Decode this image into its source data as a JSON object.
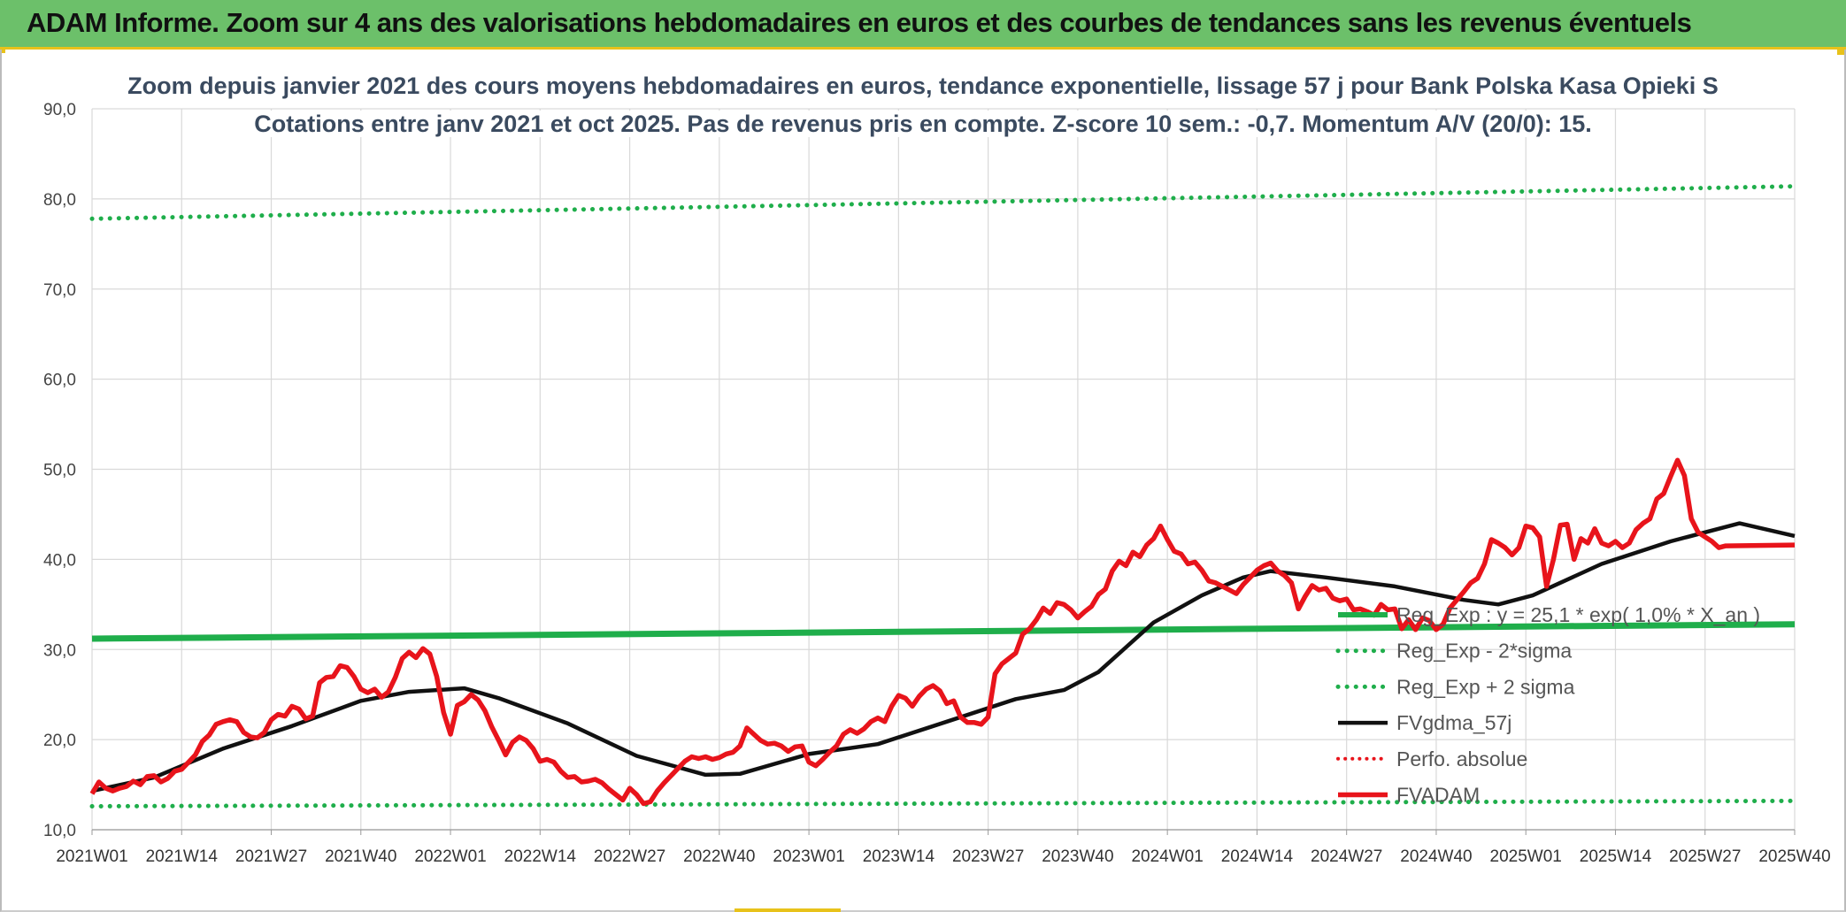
{
  "banner": {
    "title": "ADAM Informe. Zoom sur 4 ans des valorisations hebdomadaires en euros et des courbes de tendances sans les revenus éventuels"
  },
  "colors": {
    "banner_bg": "#6cc06a",
    "accent": "#e8c21a",
    "trend_green": "#1fae4b",
    "smooth_black": "#111111",
    "price_red": "#e8141b"
  },
  "chart_data": {
    "type": "line",
    "title": "Zoom depuis janvier 2021 des cours moyens hebdomadaires en euros, tendance exponentielle, lissage 57 j pour Bank Polska Kasa Opieki S",
    "subtitle": "Cotations entre janv 2021 et oct 2025. Pas de revenus pris en compte. Z-score 10 sem.: -0,7. Momentum A/V (20/0): 15.",
    "xlabel": "",
    "ylabel": "",
    "ylim": [
      10,
      90
    ],
    "yticks": [
      "10,0",
      "20,0",
      "30,0",
      "40,0",
      "50,0",
      "60,0",
      "70,0",
      "80,0",
      "90,0"
    ],
    "x_start_week": 1,
    "x_end_week": 248,
    "xticks": [
      {
        "week": 1,
        "label": "2021W01"
      },
      {
        "week": 14,
        "label": "2021W14"
      },
      {
        "week": 27,
        "label": "2021W27"
      },
      {
        "week": 40,
        "label": "2021W40"
      },
      {
        "week": 53,
        "label": "2022W01"
      },
      {
        "week": 66,
        "label": "2022W14"
      },
      {
        "week": 79,
        "label": "2022W27"
      },
      {
        "week": 92,
        "label": "2022W40"
      },
      {
        "week": 105,
        "label": "2023W01"
      },
      {
        "week": 118,
        "label": "2023W14"
      },
      {
        "week": 131,
        "label": "2023W27"
      },
      {
        "week": 144,
        "label": "2023W40"
      },
      {
        "week": 157,
        "label": "2024W01"
      },
      {
        "week": 170,
        "label": "2024W14"
      },
      {
        "week": 183,
        "label": "2024W27"
      },
      {
        "week": 196,
        "label": "2024W40"
      },
      {
        "week": 209,
        "label": "2025W01"
      },
      {
        "week": 222,
        "label": "2025W14"
      },
      {
        "week": 235,
        "label": "2025W27"
      },
      {
        "week": 248,
        "label": "2025W40"
      }
    ],
    "grid": true,
    "legend_position": "right",
    "series": [
      {
        "name": "Reg_Exp : y = 25,1 * exp( 1,0% * X_an )",
        "style": "solid-green",
        "points": [
          [
            1,
            31.2
          ],
          [
            248,
            32.8
          ]
        ]
      },
      {
        "name": "Reg_Exp - 2*sigma",
        "style": "dotted-green",
        "points": [
          [
            1,
            12.6
          ],
          [
            248,
            13.2
          ]
        ]
      },
      {
        "name": "Reg_Exp + 2 sigma",
        "style": "dotted-green",
        "points": [
          [
            1,
            77.8
          ],
          [
            248,
            81.4
          ]
        ]
      },
      {
        "name": "FVgdma_57j",
        "style": "solid-black",
        "points": [
          [
            1,
            14.3
          ],
          [
            10,
            15.8
          ],
          [
            20,
            19.0
          ],
          [
            30,
            21.5
          ],
          [
            40,
            24.3
          ],
          [
            47,
            25.3
          ],
          [
            55,
            25.7
          ],
          [
            60,
            24.6
          ],
          [
            70,
            21.8
          ],
          [
            80,
            18.2
          ],
          [
            90,
            16.1
          ],
          [
            95,
            16.2
          ],
          [
            105,
            18.4
          ],
          [
            115,
            19.5
          ],
          [
            125,
            22.0
          ],
          [
            135,
            24.5
          ],
          [
            142,
            25.5
          ],
          [
            147,
            27.5
          ],
          [
            155,
            33.0
          ],
          [
            162,
            36.0
          ],
          [
            168,
            38.0
          ],
          [
            172,
            38.7
          ],
          [
            180,
            38.0
          ],
          [
            190,
            37.0
          ],
          [
            200,
            35.5
          ],
          [
            205,
            35.0
          ],
          [
            210,
            36.0
          ],
          [
            220,
            39.5
          ],
          [
            230,
            42.0
          ],
          [
            240,
            44.0
          ],
          [
            248,
            42.6
          ]
        ]
      },
      {
        "name": "Perfo. absolue",
        "style": "dotted-red",
        "points": []
      },
      {
        "name": "FVADAM",
        "style": "solid-red",
        "points": [
          [
            1,
            14.0
          ],
          [
            2,
            15.3
          ],
          [
            3,
            14.6
          ],
          [
            4,
            14.3
          ],
          [
            5,
            14.6
          ],
          [
            6,
            14.8
          ],
          [
            7,
            15.4
          ],
          [
            8,
            15.0
          ],
          [
            9,
            15.9
          ],
          [
            10,
            16.0
          ],
          [
            11,
            15.3
          ],
          [
            12,
            15.7
          ],
          [
            13,
            16.5
          ],
          [
            14,
            16.7
          ],
          [
            15,
            17.5
          ],
          [
            16,
            18.3
          ],
          [
            17,
            19.8
          ],
          [
            18,
            20.5
          ],
          [
            19,
            21.7
          ],
          [
            20,
            22.0
          ],
          [
            21,
            22.2
          ],
          [
            22,
            22.0
          ],
          [
            23,
            20.8
          ],
          [
            24,
            20.3
          ],
          [
            25,
            20.2
          ],
          [
            26,
            20.8
          ],
          [
            27,
            22.2
          ],
          [
            28,
            22.8
          ],
          [
            29,
            22.6
          ],
          [
            30,
            23.7
          ],
          [
            31,
            23.4
          ],
          [
            32,
            22.3
          ],
          [
            33,
            22.6
          ],
          [
            34,
            26.3
          ],
          [
            35,
            26.9
          ],
          [
            36,
            27.0
          ],
          [
            37,
            28.2
          ],
          [
            38,
            28.0
          ],
          [
            39,
            27.0
          ],
          [
            40,
            25.6
          ],
          [
            41,
            25.2
          ],
          [
            42,
            25.6
          ],
          [
            43,
            24.7
          ],
          [
            44,
            25.3
          ],
          [
            45,
            26.9
          ],
          [
            46,
            29.0
          ],
          [
            47,
            29.7
          ],
          [
            48,
            29.1
          ],
          [
            49,
            30.1
          ],
          [
            50,
            29.5
          ],
          [
            51,
            27.0
          ],
          [
            52,
            23.0
          ],
          [
            53,
            20.6
          ],
          [
            54,
            23.8
          ],
          [
            55,
            24.2
          ],
          [
            56,
            25.0
          ],
          [
            57,
            24.4
          ],
          [
            58,
            23.2
          ],
          [
            59,
            21.4
          ],
          [
            60,
            19.9
          ],
          [
            61,
            18.3
          ],
          [
            62,
            19.7
          ],
          [
            63,
            20.3
          ],
          [
            64,
            19.9
          ],
          [
            65,
            19.0
          ],
          [
            66,
            17.6
          ],
          [
            67,
            17.8
          ],
          [
            68,
            17.5
          ],
          [
            69,
            16.5
          ],
          [
            70,
            15.8
          ],
          [
            71,
            15.9
          ],
          [
            72,
            15.3
          ],
          [
            73,
            15.4
          ],
          [
            74,
            15.6
          ],
          [
            75,
            15.2
          ],
          [
            76,
            14.5
          ],
          [
            77,
            13.9
          ],
          [
            78,
            13.3
          ],
          [
            79,
            14.6
          ],
          [
            80,
            13.9
          ],
          [
            81,
            12.9
          ],
          [
            82,
            13.1
          ],
          [
            83,
            14.3
          ],
          [
            84,
            15.2
          ],
          [
            85,
            16.0
          ],
          [
            86,
            16.8
          ],
          [
            87,
            17.6
          ],
          [
            88,
            18.1
          ],
          [
            89,
            17.9
          ],
          [
            90,
            18.1
          ],
          [
            91,
            17.8
          ],
          [
            92,
            18.0
          ],
          [
            93,
            18.4
          ],
          [
            94,
            18.6
          ],
          [
            95,
            19.3
          ],
          [
            96,
            21.3
          ],
          [
            97,
            20.6
          ],
          [
            98,
            19.9
          ],
          [
            99,
            19.5
          ],
          [
            100,
            19.6
          ],
          [
            101,
            19.3
          ],
          [
            102,
            18.7
          ],
          [
            103,
            19.2
          ],
          [
            104,
            19.3
          ],
          [
            105,
            17.5
          ],
          [
            106,
            17.1
          ],
          [
            107,
            17.8
          ],
          [
            108,
            18.6
          ],
          [
            109,
            19.3
          ],
          [
            110,
            20.6
          ],
          [
            111,
            21.1
          ],
          [
            112,
            20.7
          ],
          [
            113,
            21.2
          ],
          [
            114,
            22.0
          ],
          [
            115,
            22.4
          ],
          [
            116,
            22.0
          ],
          [
            117,
            23.7
          ],
          [
            118,
            24.9
          ],
          [
            119,
            24.6
          ],
          [
            120,
            23.7
          ],
          [
            121,
            24.8
          ],
          [
            122,
            25.6
          ],
          [
            123,
            26.0
          ],
          [
            124,
            25.4
          ],
          [
            125,
            24.0
          ],
          [
            126,
            24.3
          ],
          [
            127,
            22.5
          ],
          [
            128,
            21.9
          ],
          [
            129,
            21.9
          ],
          [
            130,
            21.7
          ],
          [
            131,
            22.5
          ],
          [
            132,
            27.3
          ],
          [
            133,
            28.4
          ],
          [
            134,
            29.0
          ],
          [
            135,
            29.6
          ],
          [
            136,
            31.7
          ],
          [
            137,
            32.3
          ],
          [
            138,
            33.3
          ],
          [
            139,
            34.6
          ],
          [
            140,
            34.0
          ],
          [
            141,
            35.2
          ],
          [
            142,
            35.0
          ],
          [
            143,
            34.4
          ],
          [
            144,
            33.5
          ],
          [
            145,
            34.2
          ],
          [
            146,
            34.8
          ],
          [
            147,
            36.1
          ],
          [
            148,
            36.7
          ],
          [
            149,
            38.7
          ],
          [
            150,
            39.8
          ],
          [
            151,
            39.3
          ],
          [
            152,
            40.8
          ],
          [
            153,
            40.3
          ],
          [
            154,
            41.6
          ],
          [
            155,
            42.3
          ],
          [
            156,
            43.7
          ],
          [
            157,
            42.2
          ],
          [
            158,
            40.9
          ],
          [
            159,
            40.6
          ],
          [
            160,
            39.5
          ],
          [
            161,
            39.7
          ],
          [
            162,
            38.8
          ],
          [
            163,
            37.6
          ],
          [
            164,
            37.4
          ],
          [
            165,
            37.0
          ],
          [
            166,
            36.6
          ],
          [
            167,
            36.2
          ],
          [
            168,
            37.2
          ],
          [
            169,
            38.0
          ],
          [
            170,
            38.8
          ],
          [
            171,
            39.3
          ],
          [
            172,
            39.6
          ],
          [
            173,
            38.7
          ],
          [
            174,
            38.2
          ],
          [
            175,
            37.4
          ],
          [
            176,
            34.5
          ],
          [
            177,
            35.9
          ],
          [
            178,
            37.1
          ],
          [
            179,
            36.6
          ],
          [
            180,
            36.8
          ],
          [
            181,
            35.7
          ],
          [
            182,
            35.4
          ],
          [
            183,
            35.6
          ],
          [
            184,
            34.4
          ],
          [
            185,
            34.5
          ],
          [
            186,
            34.2
          ],
          [
            187,
            33.8
          ],
          [
            188,
            35.0
          ],
          [
            189,
            34.4
          ],
          [
            190,
            34.5
          ],
          [
            191,
            32.3
          ],
          [
            192,
            33.3
          ],
          [
            193,
            32.2
          ],
          [
            194,
            33.5
          ],
          [
            195,
            33.2
          ],
          [
            196,
            32.2
          ],
          [
            197,
            32.8
          ],
          [
            198,
            34.6
          ],
          [
            199,
            35.5
          ],
          [
            200,
            36.4
          ],
          [
            201,
            37.4
          ],
          [
            202,
            37.9
          ],
          [
            203,
            39.5
          ],
          [
            204,
            42.2
          ],
          [
            205,
            41.8
          ],
          [
            206,
            41.3
          ],
          [
            207,
            40.5
          ],
          [
            208,
            41.3
          ],
          [
            209,
            43.7
          ],
          [
            210,
            43.5
          ],
          [
            211,
            42.5
          ],
          [
            212,
            37.0
          ],
          [
            213,
            40.0
          ],
          [
            214,
            43.8
          ],
          [
            215,
            43.9
          ],
          [
            216,
            40.0
          ],
          [
            217,
            42.3
          ],
          [
            218,
            41.8
          ],
          [
            219,
            43.4
          ],
          [
            220,
            41.8
          ],
          [
            221,
            41.5
          ],
          [
            222,
            42.0
          ],
          [
            223,
            41.3
          ],
          [
            224,
            41.8
          ],
          [
            225,
            43.3
          ],
          [
            226,
            44.0
          ],
          [
            227,
            44.5
          ],
          [
            228,
            46.7
          ],
          [
            229,
            47.3
          ],
          [
            230,
            49.2
          ],
          [
            231,
            51.0
          ],
          [
            232,
            49.3
          ],
          [
            233,
            44.5
          ],
          [
            234,
            43.0
          ],
          [
            235,
            42.5
          ],
          [
            236,
            42.0
          ],
          [
            237,
            41.3
          ],
          [
            238,
            41.5
          ],
          [
            248,
            41.6
          ]
        ]
      }
    ]
  }
}
